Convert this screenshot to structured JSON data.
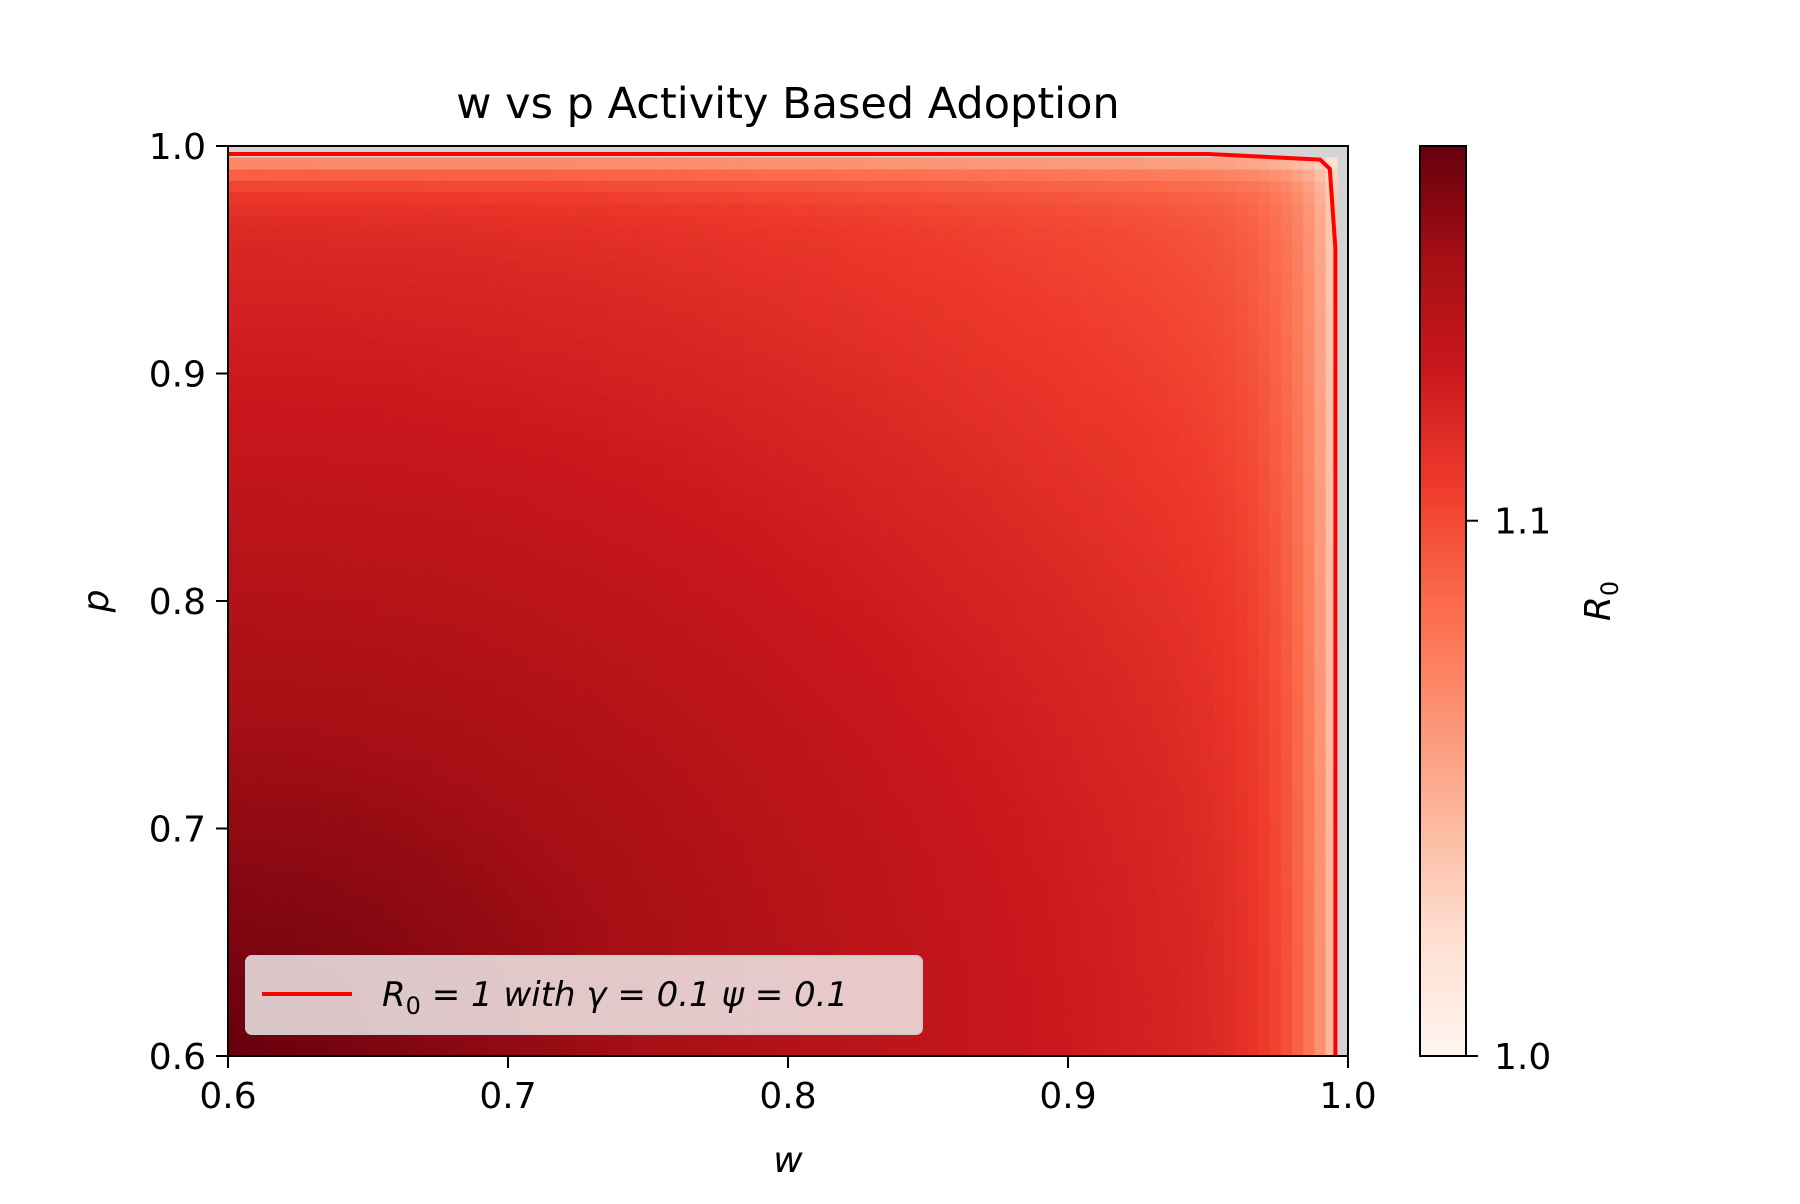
{
  "chart_data": {
    "type": "heatmap",
    "title": "w vs p Activity Based Adoption",
    "xlabel": "w",
    "ylabel": "p",
    "xlim": [
      0.6,
      1.0
    ],
    "ylim": [
      0.6,
      1.0
    ],
    "x_ticks": [
      "0.6",
      "0.7",
      "0.8",
      "0.9",
      "1.0"
    ],
    "y_ticks": [
      "0.6",
      "0.7",
      "0.8",
      "0.9",
      "1.0"
    ],
    "colormap": "Reds",
    "colorbar": {
      "label": "R0",
      "label_main": "R",
      "label_sub": "0",
      "range": [
        1.0,
        1.17
      ],
      "ticks": [
        {
          "value": 1.0,
          "label": "1.0"
        },
        {
          "value": 1.1,
          "label": "1.1"
        }
      ]
    },
    "contour": {
      "level": 1,
      "color": "#ff0000",
      "label": "R0 = 1 with γ = 0.1 ψ = 0.1",
      "label_parts": {
        "main": "R",
        "sub": "0",
        "rest": " = 1 with γ = 0.1 ψ = 0.1"
      },
      "points": [
        {
          "w": 0.6,
          "p": 0.9965
        },
        {
          "w": 0.95,
          "p": 0.9965
        },
        {
          "w": 0.99,
          "p": 0.994
        },
        {
          "w": 0.9935,
          "p": 0.99
        },
        {
          "w": 0.9955,
          "p": 0.955
        },
        {
          "w": 0.9955,
          "p": 0.6
        }
      ]
    },
    "legend_position": "lower-left",
    "grid": false,
    "background_color": "#d3d3d3"
  }
}
